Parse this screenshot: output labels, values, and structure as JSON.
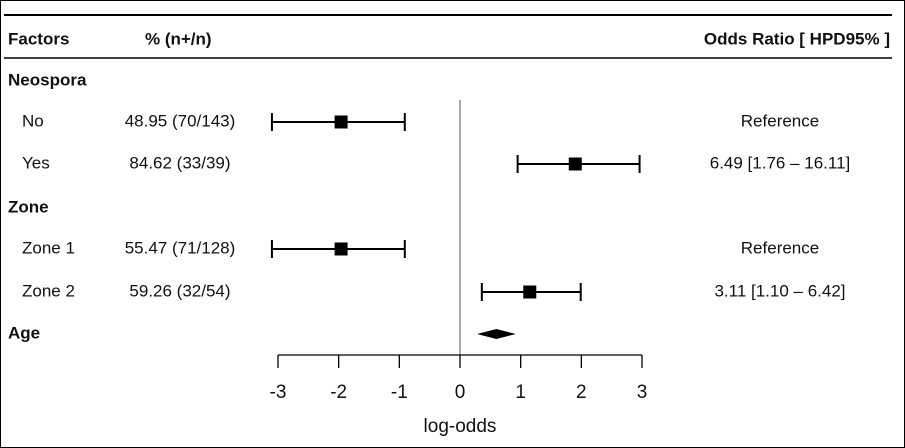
{
  "chart_data": {
    "type": "forest",
    "headers": [
      "Factors",
      "% (n+/n)",
      "Odds Ratio [ HPD95% ]"
    ],
    "rows": [
      {
        "label": "Neospora",
        "kind": "group"
      },
      {
        "label": "No",
        "kind": "item",
        "percent": "48.95 (70/143)",
        "odds_ratio": "Reference",
        "estimate": -1.96,
        "lower": -3.1,
        "upper": -0.91
      },
      {
        "label": "Yes",
        "kind": "item",
        "percent": "84.62 (33/39)",
        "odds_ratio": "6.49 [1.76 – 16.11]",
        "estimate": 1.9,
        "lower": 0.95,
        "upper": 2.96
      },
      {
        "label": "Zone",
        "kind": "group"
      },
      {
        "label": "Zone 1",
        "kind": "item",
        "percent": "55.47 (71/128)",
        "odds_ratio": "Reference",
        "estimate": -1.96,
        "lower": -3.1,
        "upper": -0.91
      },
      {
        "label": "Zone 2",
        "kind": "item",
        "percent": "59.26 (32/54)",
        "odds_ratio": "3.11 [1.10 – 6.42]",
        "estimate": 1.15,
        "lower": 0.36,
        "upper": 1.99
      },
      {
        "label": "Age",
        "kind": "group",
        "marker": "diamond",
        "estimate": 0.6,
        "lower": 0.28,
        "upper": 0.92
      }
    ],
    "xlabel": "log-odds",
    "xlim": [
      -3,
      3
    ],
    "xticks": [
      -3,
      -2,
      -1,
      0,
      1,
      2,
      3
    ],
    "reference_line": 0,
    "color": "#000000"
  }
}
